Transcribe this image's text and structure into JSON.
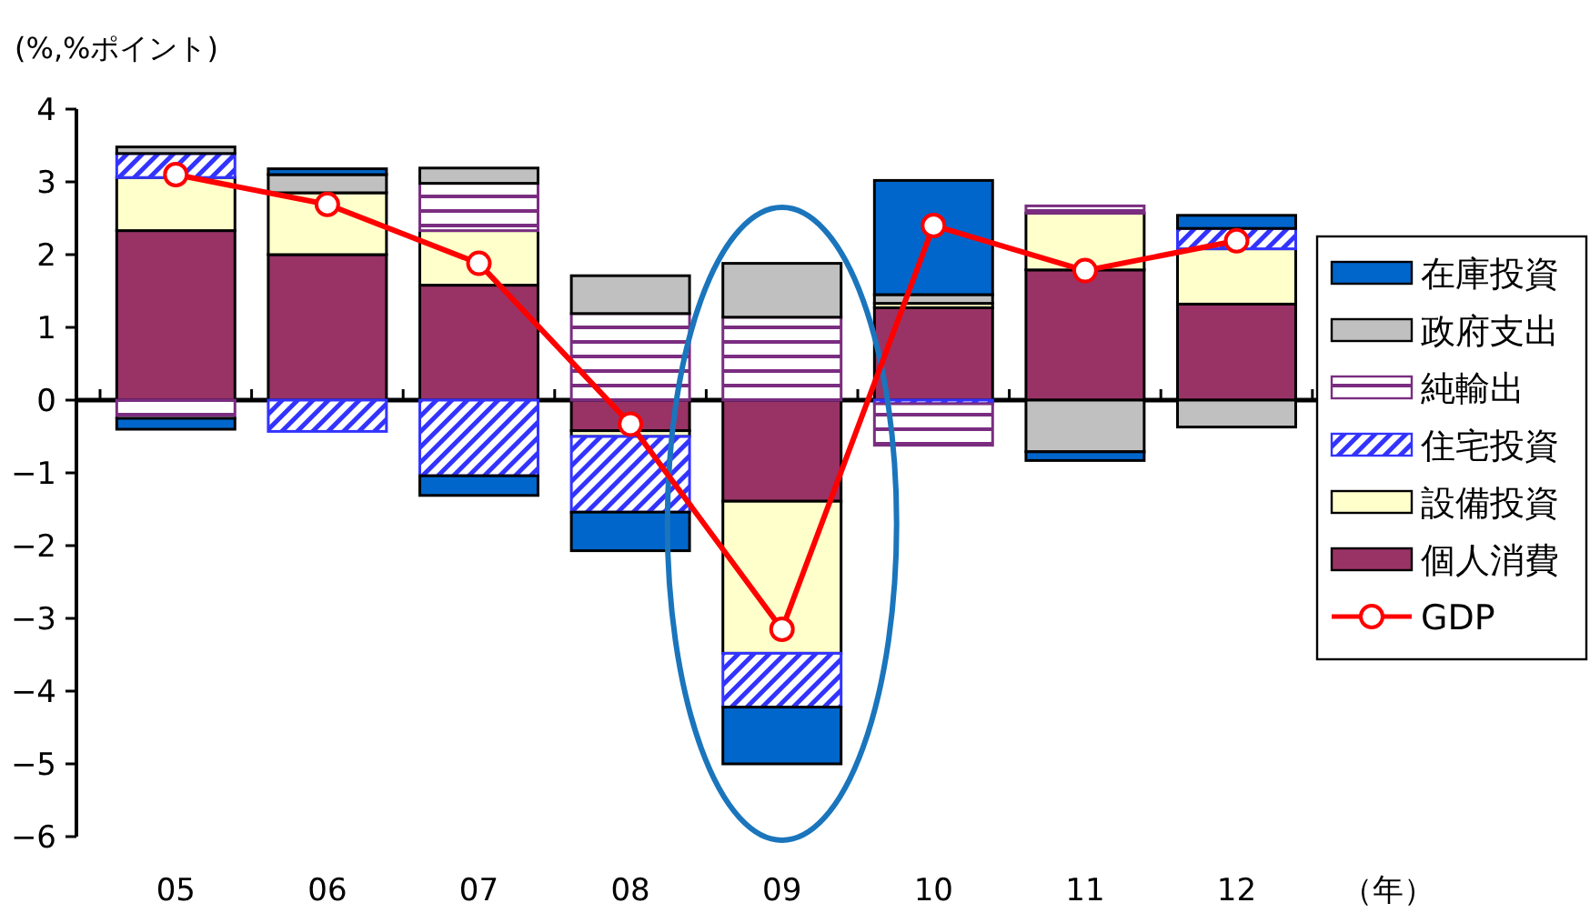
{
  "chart_data": {
    "type": "bar",
    "stacked": true,
    "ylabel": "(%,%ポイント)",
    "xlabel": "（年）",
    "categories": [
      "05",
      "06",
      "07",
      "08",
      "09",
      "10",
      "11",
      "12"
    ],
    "ylim": [
      -6,
      4
    ],
    "yticks": [
      -6,
      -5,
      -4,
      -3,
      -2,
      -1,
      0,
      1,
      2,
      3,
      4
    ],
    "legend": "right",
    "series": [
      {
        "name": "個人消費",
        "color": "#993366",
        "values": [
          2.33,
          2.0,
          1.58,
          -0.42,
          -1.39,
          1.27,
          1.79,
          1.32
        ]
      },
      {
        "name": "設備投資",
        "color": "#ffffcc",
        "values": [
          0.73,
          0.85,
          0.75,
          -0.08,
          -2.09,
          0.06,
          0.78,
          0.76
        ]
      },
      {
        "name": "住宅投資",
        "color": "#3333ff",
        "values": [
          0.33,
          -0.43,
          -1.04,
          -1.04,
          -0.74,
          -0.05,
          0,
          0.28
        ]
      },
      {
        "name": "純輸出",
        "color": "#7a2d80",
        "values": [
          -0.25,
          0,
          0.65,
          1.19,
          1.14,
          -0.57,
          0.1,
          0
        ]
      },
      {
        "name": "政府支出",
        "color": "#c0c0c0",
        "values": [
          0.09,
          0.25,
          0.21,
          0.52,
          0.74,
          0.12,
          -0.71,
          -0.37
        ]
      },
      {
        "name": "在庫投資",
        "color": "#0066cc",
        "values": [
          -0.15,
          0.08,
          -0.27,
          -0.53,
          -0.78,
          1.57,
          -0.12,
          0.18
        ]
      },
      {
        "name": "GDP",
        "type": "line",
        "color": "#ff0000",
        "marker": "circle",
        "values": [
          3.1,
          2.69,
          1.88,
          -0.33,
          -3.15,
          2.4,
          1.78,
          2.19
        ]
      }
    ]
  }
}
